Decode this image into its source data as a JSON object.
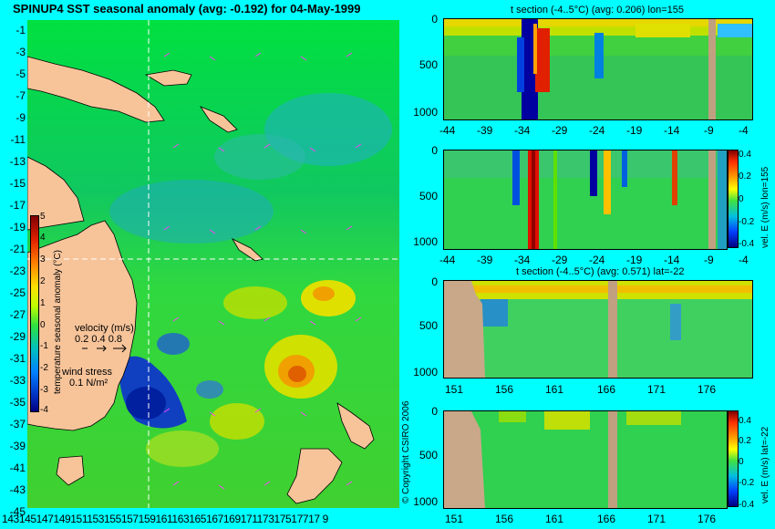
{
  "map": {
    "title": "SPINUP4 SST seasonal anomaly (avg: -0.192) for 04-May-1999",
    "lat_ticks": [
      "-1",
      "-3",
      "-5",
      "-7",
      "-9",
      "-11",
      "-13",
      "-15",
      "-17",
      "-19",
      "-21",
      "-23",
      "-25",
      "-27",
      "-29",
      "-31",
      "-33",
      "-35",
      "-37",
      "-39",
      "-41",
      "-43",
      "-45"
    ],
    "lon_ticks_text": "14314514714915115315515715916116316516716917117317517717 9",
    "colorbar": {
      "label": "temperature seasonal anomaly (°C)",
      "ticks": [
        "5",
        "4",
        "3",
        "2",
        "1",
        "0",
        "-1",
        "-2",
        "-3",
        "-4"
      ]
    },
    "velocity_legend": {
      "title": "velocity (m/s)",
      "scale": "0.2 0.4 0.8"
    },
    "wind_legend": {
      "title": "wind stress",
      "scale": "0.1 N/m²"
    },
    "copyright": "© Copyright CSIRO 2006"
  },
  "panels": [
    {
      "title": "t section (-4..5°C) (avg: 0.206) lon=155",
      "y_ticks": [
        "0",
        "500",
        "1000"
      ],
      "x_ticks": [
        "-44",
        "-39",
        "-34",
        "-29",
        "-24",
        "-19",
        "-14",
        "-9",
        "-4"
      ],
      "side_label": ""
    },
    {
      "title": "",
      "y_ticks": [
        "0",
        "500",
        "1000"
      ],
      "x_ticks": [
        "-44",
        "-39",
        "-34",
        "-29",
        "-24",
        "-19",
        "-14",
        "-9",
        "-4"
      ],
      "side_label": "vel. E (m/s) lon=155",
      "colorbar_ticks": [
        "0.4",
        "0.2",
        "0",
        "-0.2",
        "-0.4"
      ]
    },
    {
      "title": "t section (-4..5°C) (avg: 0.571) lat=-22",
      "y_ticks": [
        "0",
        "500",
        "1000"
      ],
      "x_ticks": [
        "151",
        "156",
        "161",
        "166",
        "171",
        "176"
      ],
      "side_label": ""
    },
    {
      "title": "",
      "y_ticks": [
        "0",
        "500",
        "1000"
      ],
      "x_ticks": [
        "151",
        "156",
        "161",
        "166",
        "171",
        "176"
      ],
      "side_label": "vel. E (m/s) lat=-22",
      "colorbar_ticks": [
        "0.4",
        "0.2",
        "0",
        "-0.2",
        "-0.4"
      ]
    }
  ]
}
